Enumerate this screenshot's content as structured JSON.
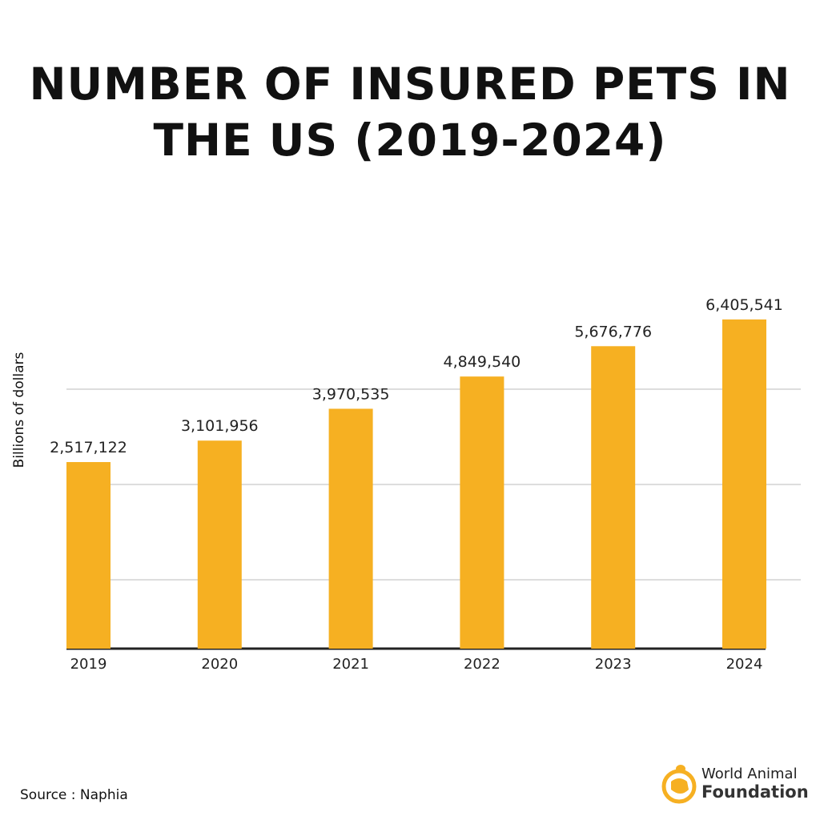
{
  "chart_data": {
    "type": "bar",
    "title": "NUMBER OF INSURED PETS IN THE US (2019-2024)",
    "ylabel": "Billions of dollars",
    "xlabel": "",
    "categories": [
      "2019",
      "2020",
      "2021",
      "2022",
      "2023",
      "2024"
    ],
    "values": [
      2517122,
      3101956,
      3970535,
      4849540,
      5676776,
      6405541
    ],
    "data_labels": [
      "2,517,122",
      "3,101,956",
      "3,970,535",
      "4,849,540",
      "5,676,776",
      "6,405,541"
    ],
    "grid": true,
    "legend": "none",
    "bar_color": "#F6B022"
  },
  "source": "Source : Naphia",
  "logo": {
    "line1": "World Animal",
    "line2": "Foundation",
    "color": "#F6B022"
  }
}
